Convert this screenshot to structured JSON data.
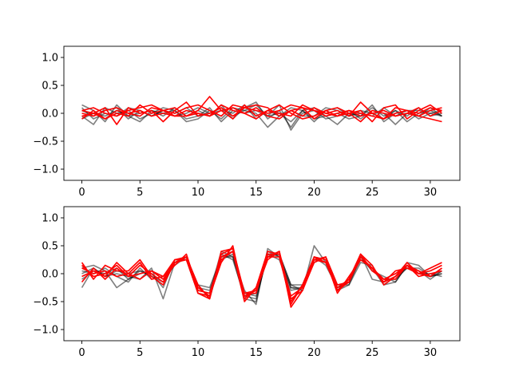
{
  "chart_data": [
    {
      "type": "line",
      "xlim": [
        -1.55,
        32.55
      ],
      "ylim": [
        -1.2,
        1.2
      ],
      "xticks": [
        0,
        5,
        10,
        15,
        20,
        25,
        30
      ],
      "yticks": [
        -1.0,
        -0.5,
        0.0,
        0.5,
        1.0
      ],
      "xtick_labels": [
        "0",
        "5",
        "10",
        "15",
        "20",
        "25",
        "30"
      ],
      "ytick_labels": [
        "−1.0",
        "−0.5",
        "0.0",
        "0.5",
        "1.0"
      ],
      "grid": false,
      "series": [
        {
          "color": "#000000",
          "alpha": 0.5,
          "values": [
            0.15,
            0.05,
            -0.15,
            0.15,
            -0.05,
            0.0,
            0.05,
            -0.05,
            0.1,
            -0.05,
            0.05,
            -0.05,
            0.15,
            -0.1,
            0.1,
            0.2,
            -0.1,
            0.05,
            -0.25,
            0.05,
            0.1,
            -0.05,
            0.0,
            -0.1,
            -0.05,
            0.1,
            -0.05,
            0.05,
            -0.15,
            0.0,
            0.05,
            -0.05
          ]
        },
        {
          "color": "#000000",
          "alpha": 0.5,
          "values": [
            -0.05,
            -0.2,
            0.1,
            0.0,
            0.05,
            -0.1,
            0.0,
            0.1,
            0.05,
            -0.15,
            -0.1,
            0.05,
            -0.1,
            0.1,
            0.05,
            0.0,
            -0.25,
            -0.05,
            0.1,
            0.05,
            -0.15,
            0.05,
            0.1,
            -0.05,
            0.05,
            0.0,
            -0.1,
            0.05,
            -0.05,
            0.1,
            -0.05,
            0.0
          ]
        },
        {
          "color": "#000000",
          "alpha": 0.5,
          "values": [
            0.05,
            -0.05,
            0.05,
            0.1,
            -0.1,
            0.05,
            -0.05,
            0.05,
            0.0,
            0.1,
            -0.05,
            0.0,
            0.1,
            -0.05,
            0.05,
            0.15,
            -0.05,
            0.0,
            -0.15,
            0.05,
            -0.1,
            -0.05,
            -0.2,
            0.0,
            -0.05,
            0.15,
            -0.15,
            0.0,
            0.05,
            0.05,
            0.0,
            -0.05
          ]
        },
        {
          "color": "#000000",
          "alpha": 0.5,
          "values": [
            -0.1,
            0.0,
            -0.05,
            0.05,
            -0.05,
            -0.15,
            0.05,
            0.0,
            0.05,
            -0.1,
            -0.05,
            0.1,
            -0.15,
            0.05,
            0.0,
            0.05,
            -0.05,
            0.15,
            -0.3,
            0.0,
            0.05,
            -0.1,
            -0.05,
            0.05,
            -0.1,
            0.05,
            0.0,
            -0.2,
            0.0,
            -0.05,
            0.1,
            -0.05
          ]
        },
        {
          "color": "#000000",
          "alpha": 0.5,
          "values": [
            0.1,
            -0.1,
            0.0,
            -0.05,
            0.1,
            0.05,
            -0.05,
            0.05,
            -0.05,
            0.0,
            0.1,
            0.0,
            0.05,
            0.0,
            0.15,
            -0.1,
            0.05,
            -0.05,
            0.05,
            -0.05,
            -0.05,
            0.1,
            0.05,
            -0.05,
            0.0,
            -0.05,
            0.1,
            -0.05,
            0.05,
            -0.1,
            0.0,
            0.05
          ]
        },
        {
          "color": "#ff0000",
          "alpha": 1.0,
          "values": [
            0.05,
            0.1,
            0.0,
            -0.05,
            0.05,
            0.1,
            0.15,
            0.05,
            0.0,
            0.1,
            0.15,
            0.05,
            -0.05,
            0.15,
            0.1,
            0.05,
            0.0,
            0.05,
            0.15,
            0.1,
            0.05,
            0.0,
            0.05,
            -0.05,
            0.2,
            0.0,
            -0.1,
            0.1,
            0.05,
            0.0,
            0.1,
            0.05
          ]
        },
        {
          "color": "#ff0000",
          "alpha": 1.0,
          "values": [
            -0.05,
            0.0,
            0.1,
            -0.2,
            0.1,
            0.0,
            0.05,
            -0.15,
            0.05,
            0.2,
            -0.05,
            0.0,
            0.1,
            -0.05,
            0.1,
            0.15,
            0.1,
            -0.05,
            0.05,
            0.1,
            -0.1,
            0.05,
            -0.05,
            0.0,
            0.05,
            -0.15,
            0.1,
            0.15,
            -0.1,
            0.05,
            0.15,
            0.0
          ]
        },
        {
          "color": "#ff0000",
          "alpha": 1.0,
          "values": [
            0.0,
            -0.05,
            0.05,
            0.1,
            0.0,
            -0.05,
            0.1,
            0.05,
            -0.05,
            -0.05,
            0.05,
            0.3,
            0.05,
            -0.1,
            0.15,
            -0.05,
            0.05,
            0.0,
            -0.05,
            0.15,
            0.05,
            -0.05,
            0.0,
            0.05,
            -0.05,
            0.0,
            0.05,
            -0.05,
            0.0,
            -0.05,
            -0.1,
            -0.15
          ]
        },
        {
          "color": "#ff0000",
          "alpha": 1.0,
          "values": [
            -0.1,
            0.05,
            -0.1,
            0.0,
            -0.05,
            0.15,
            0.0,
            0.05,
            0.1,
            -0.05,
            0.0,
            -0.05,
            0.05,
            0.1,
            0.0,
            -0.1,
            0.05,
            0.15,
            0.0,
            -0.1,
            -0.05,
            0.05,
            0.1,
            0.0,
            -0.15,
            0.05,
            0.0,
            -0.05,
            0.0,
            0.1,
            -0.05,
            0.05
          ]
        },
        {
          "color": "#ff0000",
          "alpha": 1.0,
          "values": [
            0.05,
            0.0,
            -0.1,
            0.05,
            0.0,
            0.05,
            -0.05,
            0.0,
            -0.05,
            0.05,
            0.0,
            -0.05,
            0.15,
            0.05,
            0.0,
            0.1,
            -0.05,
            -0.1,
            0.05,
            -0.05,
            0.1,
            0.0,
            -0.05,
            0.05,
            0.0,
            -0.05,
            -0.1,
            0.0,
            0.05,
            -0.05,
            0.05,
            0.1
          ]
        }
      ]
    },
    {
      "type": "line",
      "xlim": [
        -1.55,
        32.55
      ],
      "ylim": [
        -1.2,
        1.2
      ],
      "xticks": [
        0,
        5,
        10,
        15,
        20,
        25,
        30
      ],
      "yticks": [
        -1.0,
        -0.5,
        0.0,
        0.5,
        1.0
      ],
      "xtick_labels": [
        "0",
        "5",
        "10",
        "15",
        "20",
        "25",
        "30"
      ],
      "ytick_labels": [
        "−1.0",
        "−0.5",
        "0.0",
        "0.5",
        "1.0"
      ],
      "grid": false,
      "series": [
        {
          "color": "#000000",
          "alpha": 0.5,
          "values": [
            -0.25,
            0.1,
            -0.05,
            0.0,
            -0.05,
            -0.1,
            0.1,
            -0.45,
            0.2,
            0.3,
            -0.2,
            -0.25,
            0.3,
            0.3,
            -0.45,
            -0.5,
            0.4,
            0.3,
            -0.25,
            -0.3,
            0.5,
            0.2,
            -0.3,
            -0.1,
            0.35,
            -0.1,
            -0.15,
            -0.05,
            0.2,
            0.15,
            -0.05,
            0.0
          ]
        },
        {
          "color": "#000000",
          "alpha": 0.5,
          "values": [
            0.1,
            0.15,
            0.05,
            -0.25,
            -0.1,
            0.05,
            0.0,
            -0.25,
            0.25,
            0.25,
            -0.35,
            -0.4,
            0.35,
            0.25,
            -0.4,
            -0.45,
            0.35,
            0.25,
            -0.3,
            -0.25,
            0.2,
            0.3,
            -0.2,
            -0.2,
            0.3,
            0.05,
            -0.1,
            -0.1,
            0.1,
            0.1,
            -0.05,
            0.05
          ]
        },
        {
          "color": "#000000",
          "alpha": 0.5,
          "values": [
            0.0,
            0.1,
            -0.05,
            0.05,
            0.0,
            0.05,
            -0.05,
            -0.15,
            0.2,
            0.3,
            -0.25,
            -0.3,
            0.25,
            0.35,
            -0.35,
            -0.4,
            0.3,
            0.35,
            -0.2,
            -0.3,
            0.25,
            0.2,
            -0.25,
            -0.15,
            0.25,
            0.1,
            -0.2,
            -0.15,
            0.15,
            0.05,
            -0.1,
            0.05
          ]
        },
        {
          "color": "#000000",
          "alpha": 0.5,
          "values": [
            -0.1,
            0.05,
            0.0,
            0.1,
            -0.1,
            0.0,
            0.05,
            -0.1,
            0.15,
            0.3,
            -0.3,
            -0.35,
            0.4,
            0.3,
            -0.3,
            -0.55,
            0.45,
            0.3,
            -0.25,
            -0.25,
            0.3,
            0.25,
            -0.3,
            -0.2,
            0.2,
            0.15,
            -0.2,
            -0.05,
            0.1,
            0.0,
            0.0,
            -0.05
          ]
        },
        {
          "color": "#000000",
          "alpha": 0.5,
          "values": [
            0.05,
            0.0,
            0.1,
            -0.05,
            -0.15,
            0.1,
            -0.1,
            -0.05,
            0.2,
            0.25,
            -0.2,
            -0.45,
            0.3,
            0.4,
            -0.4,
            -0.35,
            0.35,
            0.35,
            -0.2,
            -0.2,
            0.3,
            0.15,
            -0.25,
            -0.15,
            0.3,
            0.05,
            -0.05,
            -0.15,
            0.15,
            0.05,
            -0.05,
            0.0
          ]
        },
        {
          "color": "#ff0000",
          "alpha": 1.0,
          "values": [
            0.2,
            -0.1,
            0.15,
            0.05,
            0.05,
            0.25,
            -0.05,
            -0.2,
            0.2,
            0.3,
            -0.2,
            -0.45,
            0.4,
            0.45,
            -0.35,
            -0.3,
            0.3,
            0.3,
            -0.5,
            -0.2,
            0.25,
            0.2,
            -0.3,
            -0.1,
            0.35,
            0.15,
            -0.2,
            -0.05,
            0.2,
            0.0,
            0.05,
            0.15
          ]
        },
        {
          "color": "#ff0000",
          "alpha": 1.0,
          "values": [
            -0.05,
            0.05,
            -0.05,
            0.2,
            0.0,
            -0.1,
            0.05,
            -0.05,
            0.25,
            0.25,
            -0.35,
            -0.4,
            0.2,
            0.5,
            -0.45,
            -0.25,
            0.3,
            0.4,
            -0.6,
            -0.3,
            0.25,
            0.3,
            -0.2,
            -0.15,
            0.3,
            0.1,
            -0.1,
            -0.1,
            0.15,
            0.0,
            -0.05,
            0.1
          ]
        },
        {
          "color": "#ff0000",
          "alpha": 1.0,
          "values": [
            0.1,
            0.0,
            0.05,
            -0.05,
            0.0,
            0.2,
            -0.1,
            -0.05,
            0.15,
            0.35,
            -0.3,
            -0.35,
            0.3,
            0.4,
            -0.5,
            -0.25,
            0.4,
            0.35,
            -0.55,
            -0.2,
            0.3,
            0.25,
            -0.35,
            -0.05,
            0.25,
            0.1,
            -0.15,
            0.05,
            0.1,
            0.0,
            0.1,
            0.2
          ]
        },
        {
          "color": "#ff0000",
          "alpha": 1.0,
          "values": [
            -0.15,
            0.1,
            -0.1,
            0.1,
            -0.05,
            0.15,
            0.0,
            -0.15,
            0.25,
            0.3,
            -0.35,
            -0.45,
            0.35,
            0.45,
            -0.4,
            -0.3,
            0.25,
            0.4,
            -0.45,
            -0.3,
            0.2,
            0.3,
            -0.3,
            -0.15,
            0.35,
            0.05,
            -0.1,
            0.0,
            0.15,
            0.05,
            -0.05,
            0.1
          ]
        },
        {
          "color": "#ff0000",
          "alpha": 1.0,
          "values": [
            0.15,
            -0.05,
            0.0,
            0.15,
            -0.05,
            0.0,
            0.05,
            -0.1,
            0.2,
            0.25,
            -0.25,
            -0.4,
            0.25,
            0.4,
            -0.35,
            -0.35,
            0.35,
            0.35,
            -0.4,
            -0.25,
            0.3,
            0.2,
            -0.25,
            -0.1,
            0.25,
            0.1,
            -0.15,
            -0.05,
            0.15,
            -0.05,
            0.0,
            0.05
          ]
        }
      ]
    }
  ]
}
